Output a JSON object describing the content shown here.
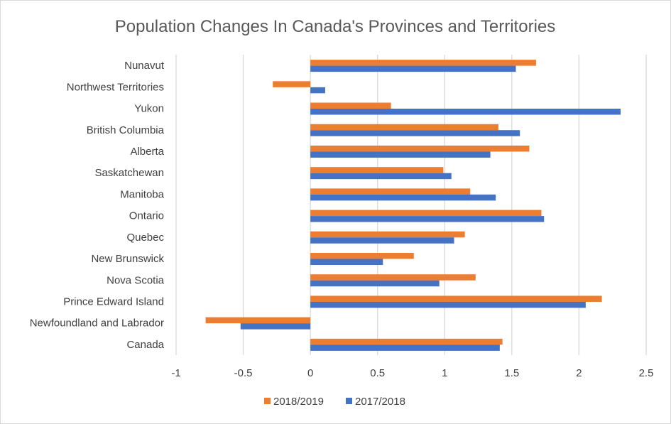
{
  "chart_data": {
    "type": "bar",
    "orientation": "horizontal",
    "title": "Population Changes In Canada's Provinces and Territories",
    "categories": [
      "Nunavut",
      "Northwest Territories",
      "Yukon",
      "British Columbia",
      "Alberta",
      "Saskatchewan",
      "Manitoba",
      "Ontario",
      "Quebec",
      "New Brunswick",
      "Nova Scotia",
      "Prince Edward Island",
      "Newfoundland and Labrador",
      "Canada"
    ],
    "series": [
      {
        "name": "2018/2019",
        "color": "#ED7D31",
        "values": [
          1.68,
          -0.28,
          0.6,
          1.4,
          1.63,
          0.99,
          1.19,
          1.72,
          1.15,
          0.77,
          1.23,
          2.17,
          -0.78,
          1.43
        ]
      },
      {
        "name": "2017/2018",
        "color": "#4472C4",
        "values": [
          1.53,
          0.11,
          2.31,
          1.56,
          1.34,
          1.05,
          1.38,
          1.74,
          1.07,
          0.54,
          0.96,
          2.05,
          -0.52,
          1.41
        ]
      }
    ],
    "xlim": [
      -1,
      2.5
    ],
    "xticks": [
      "-1",
      "-0.5",
      "0",
      "0.5",
      "1",
      "1.5",
      "2",
      "2.5"
    ],
    "grid": true,
    "legend": "bottom"
  }
}
